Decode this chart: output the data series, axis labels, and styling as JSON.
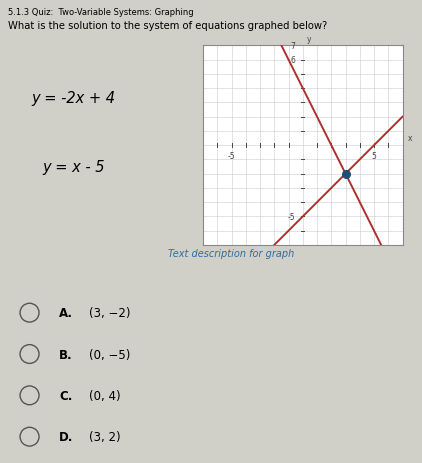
{
  "title_bar_text": "5.1.3 Quiz:  Two-Variable Systems: Graphing",
  "question": "What is the solution to the system of equations graphed below?",
  "eq1": "y = -2x + 4",
  "eq2": "y = x - 5",
  "graph_note": "Text description for graph",
  "options": [
    [
      "A.",
      "(3, −2)"
    ],
    [
      "B.",
      "(0, −5)"
    ],
    [
      "C.",
      "(0, 4)"
    ],
    [
      "D.",
      "(3, 2)"
    ]
  ],
  "xlim": [
    -7,
    7
  ],
  "ylim": [
    -7,
    7
  ],
  "intersection": [
    3,
    -2
  ],
  "line1_color": "#b03030",
  "line2_color": "#b03030",
  "dot_color": "#1f4e79",
  "graph_bg": "#ffffff",
  "page_bg": "#d0cfc8",
  "title_bg": "#b8b8b4",
  "axis_color": "#444444",
  "grid_color": "#cccccc",
  "graph_border_color": "#888888",
  "link_color": "#2e6da4",
  "fig_width": 4.22,
  "fig_height": 4.64
}
